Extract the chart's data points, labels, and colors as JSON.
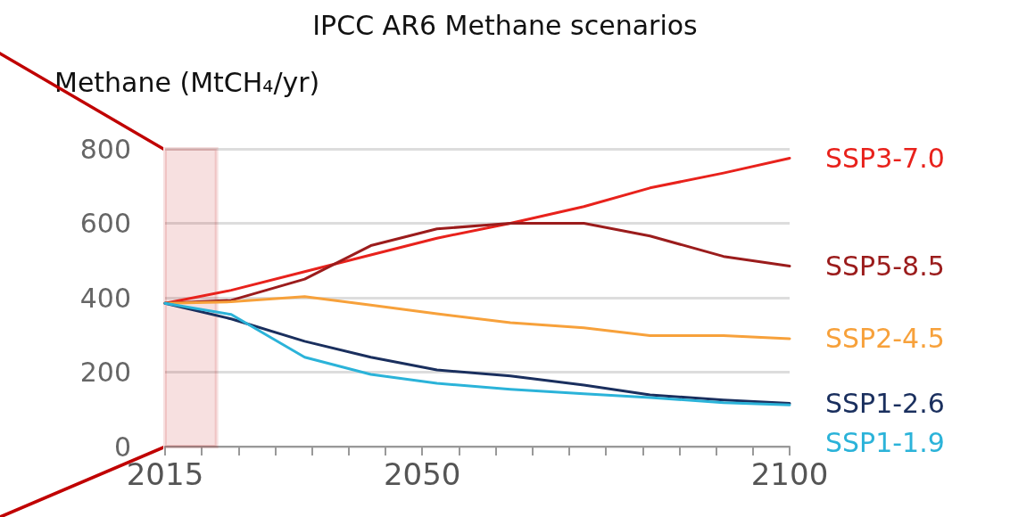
{
  "chart_data": {
    "type": "line",
    "title": "IPCC AR6 Methane scenarios",
    "ylabel": "Methane (MtCH₄/yr)",
    "x": [
      2015,
      2024,
      2034,
      2043,
      2052,
      2062,
      2072,
      2081,
      2091,
      2100
    ],
    "series": [
      {
        "name": "SSP3-7.0",
        "color": "#e8221c",
        "values": [
          385,
          420,
          470,
          515,
          560,
          600,
          645,
          695,
          735,
          775
        ]
      },
      {
        "name": "SSP5-8.5",
        "color": "#9b1c1c",
        "values": [
          385,
          393,
          450,
          540,
          585,
          600,
          600,
          566,
          511,
          485
        ]
      },
      {
        "name": "SSP2-4.5",
        "color": "#f7a13b",
        "values": [
          385,
          389,
          403,
          380,
          357,
          333,
          319,
          298,
          298,
          290
        ]
      },
      {
        "name": "SSP1-2.6",
        "color": "#1a2f5e",
        "values": [
          385,
          343,
          283,
          240,
          206,
          190,
          165,
          139,
          125,
          116
        ]
      },
      {
        "name": "SSP1-1.9",
        "color": "#2bb3d9",
        "values": [
          385,
          355,
          240,
          194,
          170,
          154,
          142,
          132,
          118,
          112
        ]
      }
    ],
    "xlim": [
      2015,
      2100
    ],
    "xticks": [
      2015,
      {
        "value": 2020,
        "label": null
      },
      {
        "value": 2025,
        "label": null
      },
      {
        "value": 2030,
        "label": null
      },
      {
        "value": 2035,
        "label": null
      },
      {
        "value": 2040,
        "label": null
      },
      {
        "value": 2045,
        "label": null
      },
      2050,
      {
        "value": 2055,
        "label": null
      },
      {
        "value": 2060,
        "label": null
      },
      {
        "value": 2065,
        "label": null
      },
      {
        "value": 2070,
        "label": null
      },
      {
        "value": 2075,
        "label": null
      },
      {
        "value": 2080,
        "label": null
      },
      {
        "value": 2085,
        "label": null
      },
      {
        "value": 2090,
        "label": null
      },
      {
        "value": 2095,
        "label": null
      },
      2100
    ],
    "ylim": [
      0,
      800
    ],
    "yticks": [
      0,
      200,
      400,
      600,
      800
    ],
    "bands": [
      {
        "axis": "x",
        "from": 2015,
        "to": 2022,
        "color": "#c00000"
      }
    ],
    "grid": "y",
    "legend": false,
    "marker": "none",
    "line_style": "solid"
  }
}
